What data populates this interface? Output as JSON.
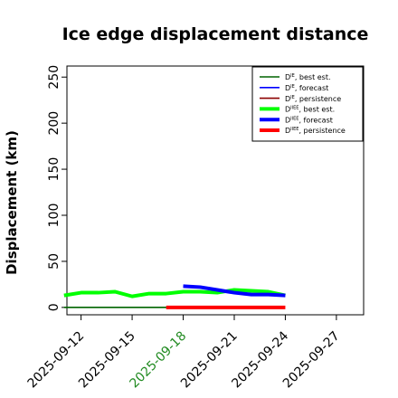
{
  "chart_data": {
    "type": "line",
    "title": "Ice edge displacement distance",
    "ylabel": "Displacement (km)",
    "xlabel": "",
    "ylim": [
      -8,
      262
    ],
    "y_ticks": [
      0,
      50,
      100,
      150,
      200,
      250
    ],
    "x_ticks": [
      "2025-09-12",
      "2025-09-15",
      "2025-09-18",
      "2025-09-21",
      "2025-09-24",
      "2025-09-27"
    ],
    "x_tick_colors": [
      "#000000",
      "#000000",
      "#228B22",
      "#000000",
      "#000000",
      "#000000"
    ],
    "grid": false,
    "legend_position": "top-right",
    "series": [
      {
        "name": "D^IE, best est.",
        "legend_main": "D",
        "legend_sup": "IE",
        "legend_rest": ", best est.",
        "color": "#006400",
        "weight": "thin",
        "x": [
          "2025-09-11",
          "2025-09-12",
          "2025-09-13",
          "2025-09-14",
          "2025-09-15",
          "2025-09-16",
          "2025-09-17",
          "2025-09-18"
        ],
        "values": [
          0,
          0,
          0,
          0,
          0,
          0,
          0,
          0
        ]
      },
      {
        "name": "D^IE, forecast",
        "legend_main": "D",
        "legend_sup": "IE",
        "legend_rest": ", forecast",
        "color": "#0000ff",
        "weight": "thin",
        "x": [],
        "values": []
      },
      {
        "name": "D^IE, persistence",
        "legend_main": "D",
        "legend_sup": "IE",
        "legend_rest": ", persistence",
        "color": "#8b0000",
        "weight": "thin",
        "x": [],
        "values": []
      },
      {
        "name": "D^IIEE, best est.",
        "legend_main": "D",
        "legend_sup": "IIEE",
        "legend_rest": ", best est.",
        "color": "#00ff00",
        "weight": "thick",
        "x": [
          "2025-09-11",
          "2025-09-12",
          "2025-09-13",
          "2025-09-14",
          "2025-09-15",
          "2025-09-16",
          "2025-09-17",
          "2025-09-18",
          "2025-09-19",
          "2025-09-20",
          "2025-09-21",
          "2025-09-22",
          "2025-09-23",
          "2025-09-24"
        ],
        "values": [
          13,
          16,
          16,
          17,
          12,
          15,
          15,
          17,
          17,
          16,
          19,
          18,
          17,
          13
        ]
      },
      {
        "name": "D^IIEE, forecast",
        "legend_main": "D",
        "legend_sup": "IIEE",
        "legend_rest": ", forecast",
        "color": "#0000ff",
        "weight": "thick",
        "x": [
          "2025-09-18",
          "2025-09-19",
          "2025-09-20",
          "2025-09-21",
          "2025-09-22",
          "2025-09-23",
          "2025-09-24"
        ],
        "values": [
          23,
          22,
          19,
          16,
          14,
          14,
          13
        ]
      },
      {
        "name": "D^IIEE, persistence",
        "legend_main": "D",
        "legend_sup": "IIEE",
        "legend_rest": ", persistence",
        "color": "#ff0000",
        "weight": "thick",
        "x": [
          "2025-09-17",
          "2025-09-18",
          "2025-09-19",
          "2025-09-20",
          "2025-09-21",
          "2025-09-22",
          "2025-09-23",
          "2025-09-24"
        ],
        "values": [
          0,
          0,
          0,
          0,
          0,
          0,
          0,
          0
        ]
      }
    ]
  }
}
